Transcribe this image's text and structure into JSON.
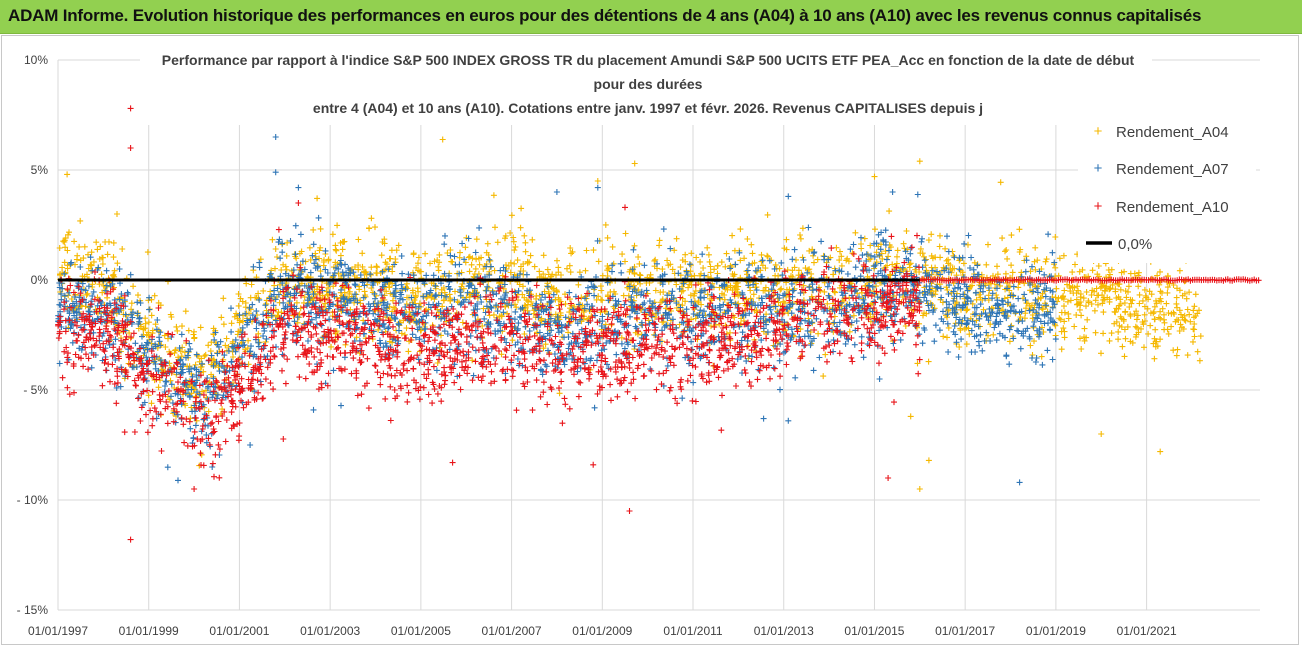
{
  "header": {
    "title": "ADAM Informe. Evolution historique des performances en euros pour des détentions de 4 ans (A04) à 10 ans (A10) avec les revenus connus capitalisés"
  },
  "chart_data": {
    "type": "scatter",
    "title_lines": [
      "Performance par rapport à l'indice S&P 500 INDEX GROSS TR  du placement Amundi S&P 500 UCITS ETF PEA_Acc en fonction de la date de début",
      "pour des durées",
      "entre 4 (A04) et 10 ans (A10). Cotations entre janv. 1997 et févr. 2026. Revenus CAPITALISES depuis j"
    ],
    "xlabel": "",
    "ylabel": "",
    "x_range": [
      1997.0,
      2023.5
    ],
    "x_tick_values": [
      1997,
      1999,
      2001,
      2003,
      2005,
      2007,
      2009,
      2011,
      2013,
      2015,
      2017,
      2019,
      2021
    ],
    "x_tick_labels": [
      "01/01/1997",
      "01/01/1999",
      "01/01/2001",
      "01/01/2003",
      "01/01/2005",
      "01/01/2007",
      "01/01/2009",
      "01/01/2011",
      "01/01/2013",
      "01/01/2015",
      "01/01/2017",
      "01/01/2019",
      "01/01/2021"
    ],
    "ylim": [
      -15,
      10
    ],
    "y_tick_values": [
      10,
      5,
      0,
      -5,
      -10,
      -15
    ],
    "y_tick_labels": [
      "10%",
      "5%",
      "0%",
      "- 5%",
      "- 10%",
      "- 15%"
    ],
    "grid": true,
    "legend_position": "top-right",
    "series": [
      {
        "name": "Rendement_A04",
        "color": "#f5b800",
        "marker": "+",
        "x_end": 2022.2,
        "profile_x": [
          1997.0,
          1997.5,
          1998.0,
          1998.5,
          1999.0,
          1999.5,
          2000.0,
          2000.5,
          2001.0,
          2001.5,
          2002.0,
          2003.0,
          2004.0,
          2005.0,
          2006.0,
          2007.0,
          2008.0,
          2009.0,
          2010.0,
          2011.0,
          2012.0,
          2013.0,
          2014.0,
          2015.0,
          2016.0,
          2017.0,
          2018.0,
          2019.0,
          2020.0,
          2021.0,
          2022.2
        ],
        "profile_y": [
          0.3,
          0.0,
          -0.5,
          -1.5,
          -3.0,
          -3.5,
          -4.5,
          -4.0,
          -2.0,
          -1.0,
          0.0,
          -0.3,
          -0.4,
          -0.8,
          -0.3,
          0.0,
          -1.0,
          -0.8,
          -0.5,
          -0.8,
          -0.5,
          -0.7,
          -0.3,
          0.0,
          0.0,
          -0.5,
          -0.2,
          -1.0,
          -0.8,
          -1.2,
          -1.5
        ],
        "outliers": [
          [
            1997.2,
            4.8
          ],
          [
            1998.3,
            3.0
          ],
          [
            2008.9,
            4.5
          ],
          [
            2015.0,
            4.7
          ],
          [
            2016.0,
            5.4
          ],
          [
            2016.0,
            -9.5
          ],
          [
            2016.2,
            -8.2
          ],
          [
            2020.0,
            -7.0
          ],
          [
            2021.3,
            -7.8
          ],
          [
            2015.8,
            -6.2
          ]
        ]
      },
      {
        "name": "Rendement_A07",
        "color": "#2e75b6",
        "marker": "+",
        "x_end": 2019.0,
        "profile_x": [
          1997.0,
          1998.0,
          1999.0,
          1999.5,
          2000.0,
          2000.5,
          2001.0,
          2001.5,
          2002.0,
          2003.0,
          2004.0,
          2005.0,
          2006.0,
          2007.0,
          2008.0,
          2009.0,
          2010.0,
          2011.0,
          2012.0,
          2013.0,
          2014.0,
          2015.0,
          2016.0,
          2017.0,
          2018.0,
          2019.0
        ],
        "profile_y": [
          -1.0,
          -1.5,
          -3.5,
          -4.0,
          -5.5,
          -5.0,
          -3.0,
          -2.0,
          -0.5,
          -1.0,
          -1.5,
          -1.5,
          -1.2,
          -1.5,
          -2.5,
          -2.0,
          -1.5,
          -1.5,
          -1.2,
          -1.5,
          -1.0,
          -0.5,
          -0.5,
          -1.0,
          -1.5,
          -1.5
        ],
        "outliers": [
          [
            2001.8,
            6.5
          ],
          [
            2001.8,
            4.9
          ],
          [
            2002.3,
            4.2
          ],
          [
            2008.0,
            4.0
          ],
          [
            2008.9,
            4.2
          ],
          [
            2013.1,
            3.8
          ],
          [
            2015.4,
            4.0
          ],
          [
            2018.2,
            -9.2
          ],
          [
            2000.4,
            -8.5
          ],
          [
            2013.1,
            -6.4
          ]
        ]
      },
      {
        "name": "Rendement_A10",
        "color": "#e8141a",
        "marker": "+",
        "x_end": 2016.0,
        "profile_x": [
          1997.0,
          1998.0,
          1999.0,
          1999.5,
          2000.0,
          2000.5,
          2001.0,
          2001.5,
          2002.0,
          2003.0,
          2004.0,
          2005.0,
          2006.0,
          2007.0,
          2008.0,
          2009.0,
          2010.0,
          2011.0,
          2012.0,
          2013.0,
          2014.0,
          2015.0,
          2016.0
        ],
        "profile_y": [
          -2.5,
          -2.2,
          -4.5,
          -5.0,
          -6.0,
          -6.5,
          -4.5,
          -3.5,
          -2.0,
          -2.5,
          -3.0,
          -3.5,
          -3.0,
          -2.5,
          -3.5,
          -3.0,
          -3.0,
          -3.0,
          -3.0,
          -2.0,
          -1.5,
          -1.5,
          -1.0
        ],
        "outliers": [
          [
            1998.6,
            7.8
          ],
          [
            1998.6,
            6.0
          ],
          [
            1998.6,
            -11.8
          ],
          [
            2000.0,
            -9.5
          ],
          [
            2005.7,
            -8.3
          ],
          [
            2009.5,
            3.3
          ],
          [
            2009.6,
            -10.5
          ],
          [
            2008.8,
            -8.4
          ],
          [
            2002.3,
            3.5
          ],
          [
            2015.3,
            -9.0
          ]
        ]
      },
      {
        "name": "0,0%",
        "color": "#000000",
        "marker": "line",
        "x": [
          1997.0,
          2023.5
        ],
        "y": [
          0.0,
          0.0
        ]
      }
    ],
    "red_flat_segment": {
      "x_start": 2016.0,
      "x_end": 2023.5,
      "y": 0.0
    }
  }
}
